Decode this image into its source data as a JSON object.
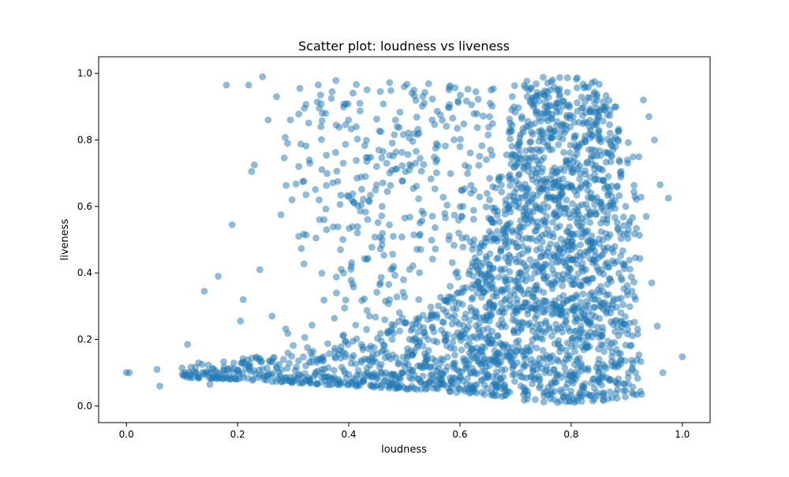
{
  "chart_data": {
    "type": "scatter",
    "title": "Scatter plot: loudness vs liveness",
    "xlabel": "loudness",
    "ylabel": "liveness",
    "xlim": [
      -0.05,
      1.05
    ],
    "ylim": [
      -0.05,
      1.05
    ],
    "xticks": [
      0.0,
      0.2,
      0.4,
      0.6,
      0.8,
      1.0
    ],
    "yticks": [
      0.0,
      0.2,
      0.4,
      0.6,
      0.8,
      1.0
    ],
    "xtick_labels": [
      "0.0",
      "0.2",
      "0.4",
      "0.6",
      "0.8",
      "1.0"
    ],
    "ytick_labels": [
      "0.0",
      "0.2",
      "0.4",
      "0.6",
      "0.8",
      "1.0"
    ],
    "grid": false,
    "marker_color": "#1f77b4",
    "marker_alpha": 0.5,
    "points": [
      [
        0.0,
        0.1
      ],
      [
        0.005,
        0.1
      ],
      [
        0.055,
        0.11
      ],
      [
        0.06,
        0.06
      ],
      [
        0.105,
        0.1
      ],
      [
        0.11,
        0.185
      ],
      [
        0.115,
        0.095
      ],
      [
        0.125,
        0.1
      ],
      [
        0.13,
        0.13
      ],
      [
        0.14,
        0.345
      ],
      [
        0.15,
        0.065
      ],
      [
        0.165,
        0.39
      ],
      [
        0.18,
        0.965
      ],
      [
        0.19,
        0.545
      ],
      [
        0.205,
        0.255
      ],
      [
        0.21,
        0.32
      ],
      [
        0.22,
        0.965
      ],
      [
        0.225,
        0.705
      ],
      [
        0.23,
        0.725
      ],
      [
        0.24,
        0.41
      ],
      [
        0.245,
        0.99
      ],
      [
        0.255,
        0.86
      ],
      [
        0.262,
        0.27
      ],
      [
        0.27,
        0.93
      ],
      [
        0.278,
        0.575
      ],
      [
        0.29,
        0.79
      ],
      [
        0.295,
        0.86
      ],
      [
        0.298,
        0.62
      ],
      [
        0.31,
        0.72
      ],
      [
        0.31,
        0.51
      ],
      [
        0.32,
        0.895
      ],
      [
        0.33,
        0.73
      ],
      [
        0.35,
        0.84
      ],
      [
        0.36,
        0.53
      ],
      [
        0.37,
        0.945
      ],
      [
        0.38,
        0.675
      ],
      [
        0.385,
        0.47
      ],
      [
        0.39,
        0.73
      ],
      [
        0.41,
        0.61
      ],
      [
        0.42,
        0.91
      ],
      [
        0.43,
        0.69
      ],
      [
        0.45,
        0.72
      ],
      [
        0.46,
        0.6
      ],
      [
        0.48,
        0.51
      ],
      [
        0.5,
        0.96
      ],
      [
        0.52,
        0.73
      ],
      [
        0.55,
        0.86
      ],
      [
        0.58,
        0.5
      ],
      [
        0.6,
        0.78
      ],
      [
        0.93,
        0.92
      ],
      [
        0.935,
        0.57
      ],
      [
        0.94,
        0.87
      ],
      [
        0.945,
        0.37
      ],
      [
        0.95,
        0.8
      ],
      [
        0.955,
        0.24
      ],
      [
        0.96,
        0.665
      ],
      [
        0.965,
        0.1
      ],
      [
        0.975,
        0.625
      ],
      [
        1.0,
        0.148
      ]
    ],
    "density_profile": [
      [
        0.1,
        0.085,
        0.12,
        0.01
      ],
      [
        0.2,
        0.08,
        0.14,
        0.03
      ],
      [
        0.3,
        0.07,
        0.17,
        0.05
      ],
      [
        0.4,
        0.06,
        0.2,
        0.08
      ],
      [
        0.5,
        0.05,
        0.26,
        0.12
      ],
      [
        0.55,
        0.05,
        0.3,
        0.16
      ],
      [
        0.6,
        0.04,
        0.35,
        0.22
      ],
      [
        0.65,
        0.03,
        0.55,
        0.5
      ],
      [
        0.7,
        0.02,
        0.97,
        0.85
      ],
      [
        0.75,
        0.01,
        0.99,
        0.98
      ],
      [
        0.8,
        0.01,
        0.99,
        1.0
      ],
      [
        0.85,
        0.01,
        0.98,
        0.95
      ],
      [
        0.88,
        0.02,
        0.9,
        0.6
      ],
      [
        0.92,
        0.03,
        0.75,
        0.2
      ]
    ]
  }
}
